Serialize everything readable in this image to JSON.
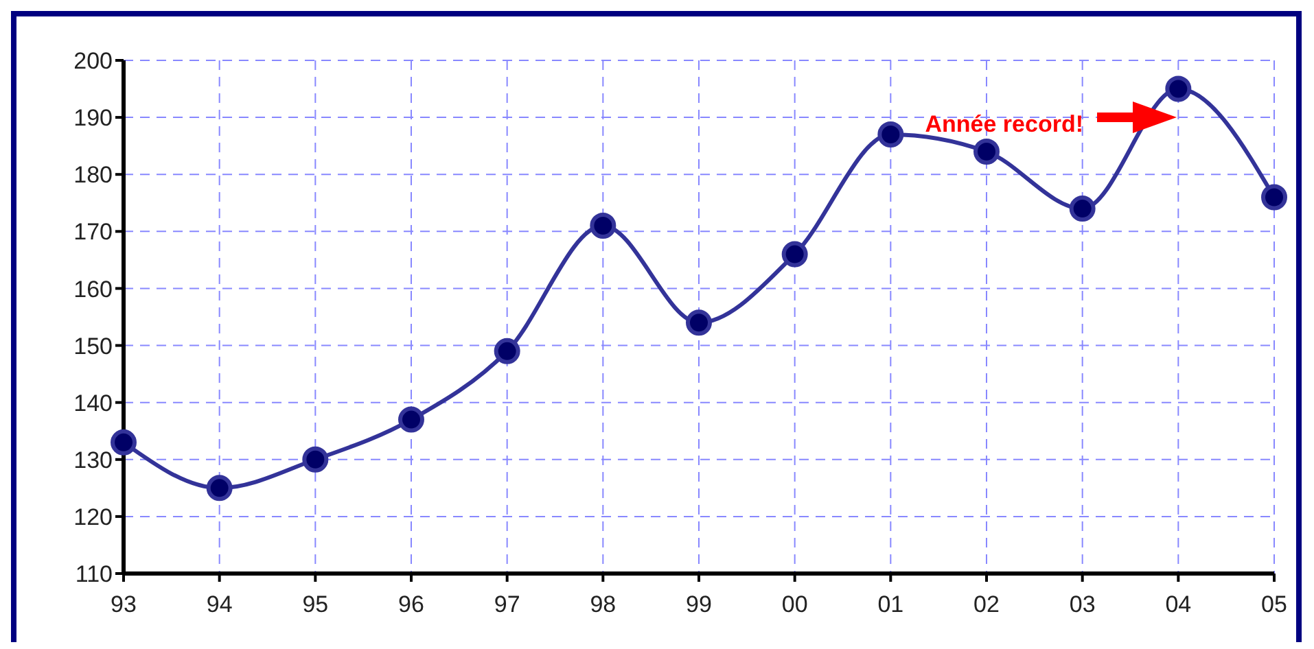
{
  "chart_data": {
    "type": "line",
    "categories": [
      "93",
      "94",
      "95",
      "96",
      "97",
      "98",
      "99",
      "00",
      "01",
      "02",
      "03",
      "04",
      "05"
    ],
    "series": [
      {
        "color": "#333399",
        "values": [
          133,
          125,
          130,
          137,
          149,
          171,
          154,
          166,
          187,
          184,
          174,
          195,
          176
        ]
      }
    ],
    "ylim": [
      110,
      200
    ],
    "yticks": [
      110,
      120,
      130,
      140,
      150,
      160,
      170,
      180,
      190,
      200
    ],
    "grid": true,
    "marker": "circle",
    "line_style": "solid",
    "annotations": [
      "Année record!"
    ]
  }
}
